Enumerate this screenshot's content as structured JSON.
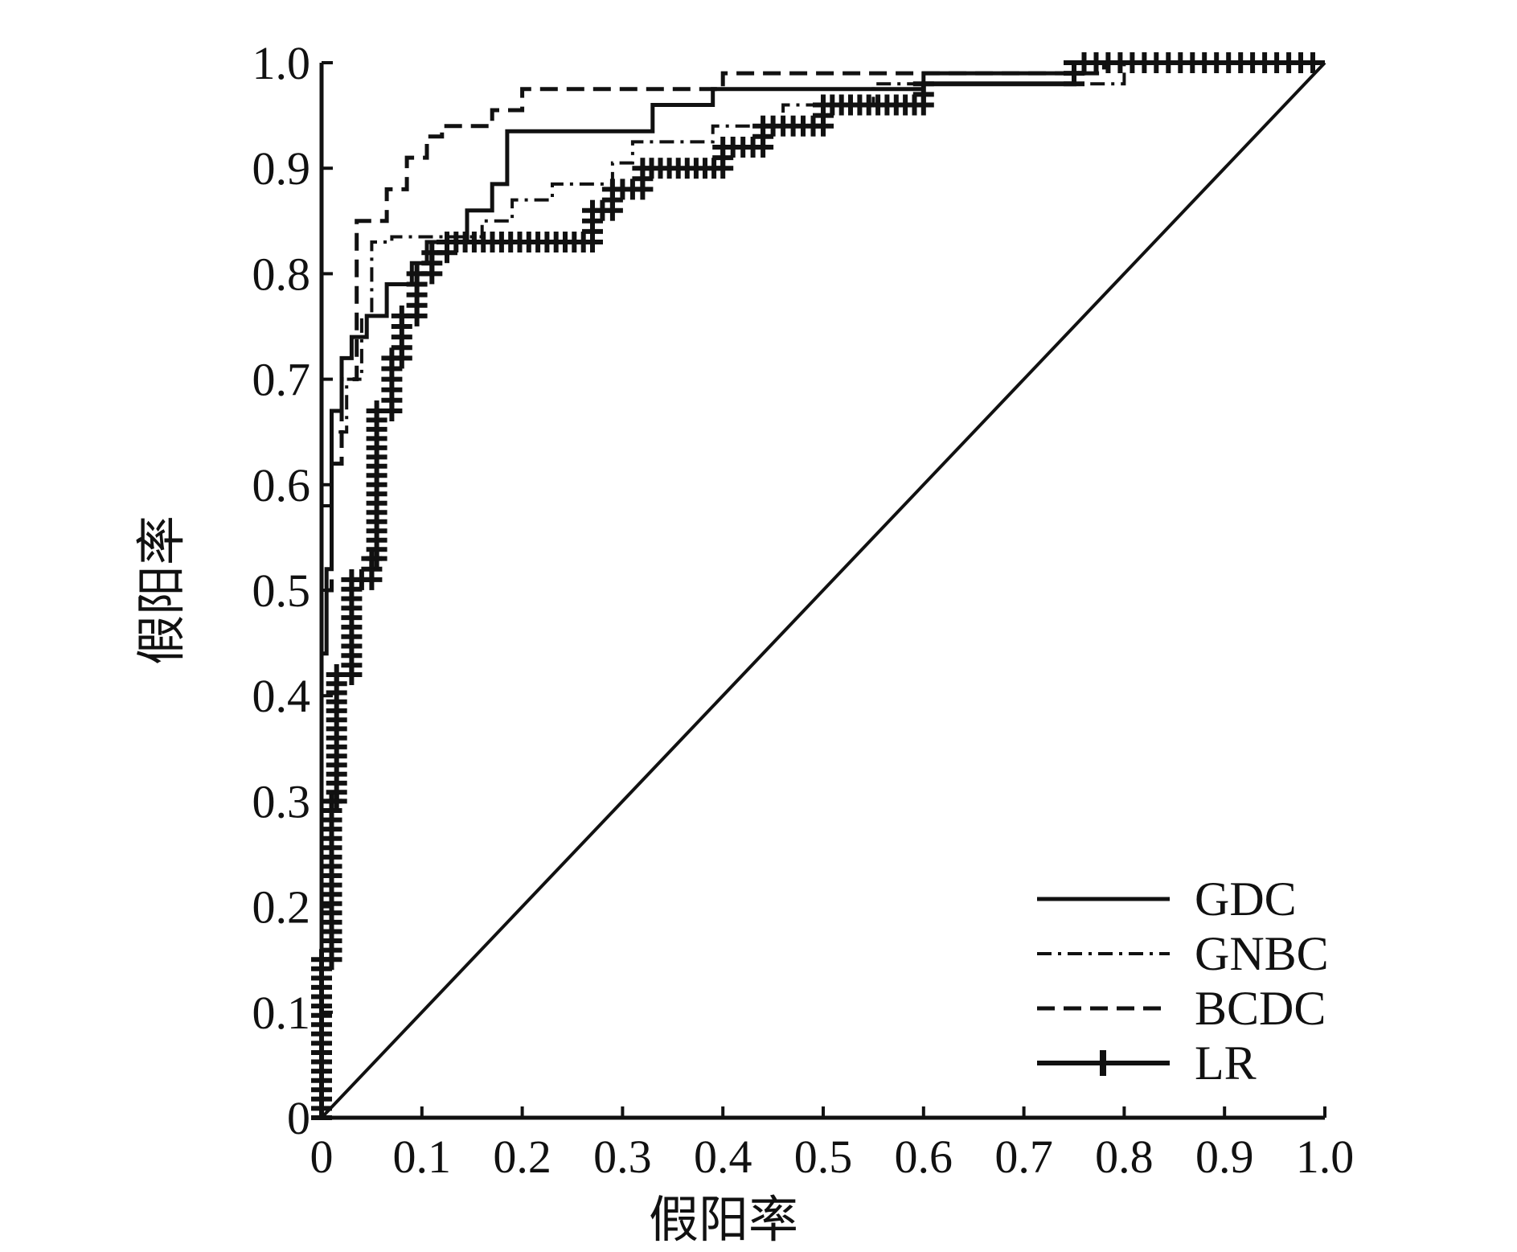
{
  "chart_data": {
    "type": "line",
    "xlabel": "假阳率",
    "ylabel": "假阳率",
    "xlim": [
      0,
      1.0
    ],
    "ylim": [
      0,
      1.0
    ],
    "x_ticks": [
      "0",
      "0.1",
      "0.2",
      "0.3",
      "0.4",
      "0.5",
      "0.6",
      "0.7",
      "0.8",
      "0.9",
      "1.0"
    ],
    "y_ticks": [
      "0",
      "0.1",
      "0.2",
      "0.3",
      "0.4",
      "0.5",
      "0.6",
      "0.7",
      "0.8",
      "0.9",
      "1.0"
    ],
    "grid": false,
    "legend_position": "bottom-right",
    "series": [
      {
        "name": "GDC",
        "style": "solid",
        "color": "#111111",
        "points": [
          [
            0,
            0
          ],
          [
            0,
            0.44
          ],
          [
            0.005,
            0.44
          ],
          [
            0.005,
            0.52
          ],
          [
            0.01,
            0.52
          ],
          [
            0.01,
            0.67
          ],
          [
            0.02,
            0.67
          ],
          [
            0.02,
            0.72
          ],
          [
            0.03,
            0.72
          ],
          [
            0.03,
            0.74
          ],
          [
            0.045,
            0.74
          ],
          [
            0.045,
            0.76
          ],
          [
            0.065,
            0.76
          ],
          [
            0.065,
            0.79
          ],
          [
            0.09,
            0.79
          ],
          [
            0.09,
            0.81
          ],
          [
            0.105,
            0.81
          ],
          [
            0.105,
            0.83
          ],
          [
            0.145,
            0.83
          ],
          [
            0.145,
            0.86
          ],
          [
            0.17,
            0.86
          ],
          [
            0.17,
            0.885
          ],
          [
            0.185,
            0.885
          ],
          [
            0.185,
            0.935
          ],
          [
            0.33,
            0.935
          ],
          [
            0.33,
            0.96
          ],
          [
            0.39,
            0.96
          ],
          [
            0.39,
            0.975
          ],
          [
            0.6,
            0.975
          ],
          [
            0.6,
            0.99
          ],
          [
            0.76,
            0.99
          ],
          [
            0.76,
            1.0
          ],
          [
            1.0,
            1.0
          ]
        ]
      },
      {
        "name": "GNBC",
        "style": "dashdot",
        "color": "#111111",
        "points": [
          [
            0,
            0
          ],
          [
            0,
            0.58
          ],
          [
            0.01,
            0.58
          ],
          [
            0.01,
            0.65
          ],
          [
            0.025,
            0.65
          ],
          [
            0.025,
            0.7
          ],
          [
            0.04,
            0.7
          ],
          [
            0.04,
            0.76
          ],
          [
            0.05,
            0.76
          ],
          [
            0.05,
            0.83
          ],
          [
            0.07,
            0.83
          ],
          [
            0.07,
            0.835
          ],
          [
            0.16,
            0.835
          ],
          [
            0.16,
            0.85
          ],
          [
            0.19,
            0.85
          ],
          [
            0.19,
            0.87
          ],
          [
            0.23,
            0.87
          ],
          [
            0.23,
            0.885
          ],
          [
            0.29,
            0.885
          ],
          [
            0.29,
            0.905
          ],
          [
            0.31,
            0.905
          ],
          [
            0.31,
            0.925
          ],
          [
            0.39,
            0.925
          ],
          [
            0.39,
            0.94
          ],
          [
            0.46,
            0.94
          ],
          [
            0.46,
            0.96
          ],
          [
            0.55,
            0.96
          ],
          [
            0.55,
            0.98
          ],
          [
            0.8,
            0.98
          ],
          [
            0.8,
            1.0
          ],
          [
            1.0,
            1.0
          ]
        ]
      },
      {
        "name": "BCDC",
        "style": "dashed",
        "color": "#111111",
        "points": [
          [
            0,
            0
          ],
          [
            0,
            0.5
          ],
          [
            0.01,
            0.5
          ],
          [
            0.01,
            0.62
          ],
          [
            0.02,
            0.62
          ],
          [
            0.02,
            0.7
          ],
          [
            0.035,
            0.7
          ],
          [
            0.035,
            0.85
          ],
          [
            0.065,
            0.85
          ],
          [
            0.065,
            0.88
          ],
          [
            0.085,
            0.88
          ],
          [
            0.085,
            0.91
          ],
          [
            0.105,
            0.91
          ],
          [
            0.105,
            0.93
          ],
          [
            0.12,
            0.93
          ],
          [
            0.12,
            0.94
          ],
          [
            0.17,
            0.94
          ],
          [
            0.17,
            0.955
          ],
          [
            0.2,
            0.955
          ],
          [
            0.2,
            0.975
          ],
          [
            0.4,
            0.975
          ],
          [
            0.4,
            0.99
          ],
          [
            0.78,
            0.99
          ],
          [
            0.78,
            1.0
          ],
          [
            1.0,
            1.0
          ]
        ]
      },
      {
        "name": "LR",
        "style": "solid-plus",
        "color": "#111111",
        "points": [
          [
            0,
            0
          ],
          [
            0,
            0.15
          ],
          [
            0.01,
            0.15
          ],
          [
            0.01,
            0.3
          ],
          [
            0.015,
            0.3
          ],
          [
            0.015,
            0.42
          ],
          [
            0.03,
            0.42
          ],
          [
            0.03,
            0.51
          ],
          [
            0.05,
            0.51
          ],
          [
            0.05,
            0.53
          ],
          [
            0.055,
            0.53
          ],
          [
            0.055,
            0.67
          ],
          [
            0.07,
            0.67
          ],
          [
            0.07,
            0.72
          ],
          [
            0.08,
            0.72
          ],
          [
            0.08,
            0.76
          ],
          [
            0.095,
            0.76
          ],
          [
            0.095,
            0.8
          ],
          [
            0.11,
            0.8
          ],
          [
            0.11,
            0.82
          ],
          [
            0.125,
            0.82
          ],
          [
            0.125,
            0.83
          ],
          [
            0.27,
            0.83
          ],
          [
            0.27,
            0.86
          ],
          [
            0.29,
            0.86
          ],
          [
            0.29,
            0.88
          ],
          [
            0.32,
            0.88
          ],
          [
            0.32,
            0.9
          ],
          [
            0.4,
            0.9
          ],
          [
            0.4,
            0.92
          ],
          [
            0.44,
            0.92
          ],
          [
            0.44,
            0.94
          ],
          [
            0.5,
            0.94
          ],
          [
            0.5,
            0.96
          ],
          [
            0.6,
            0.96
          ],
          [
            0.6,
            0.98
          ],
          [
            0.75,
            0.98
          ],
          [
            0.75,
            1.0
          ],
          [
            1.0,
            1.0
          ]
        ]
      },
      {
        "name": "",
        "style": "solid-thin",
        "color": "#111111",
        "points": [
          [
            0,
            0
          ],
          [
            1.0,
            1.0
          ]
        ]
      }
    ]
  }
}
